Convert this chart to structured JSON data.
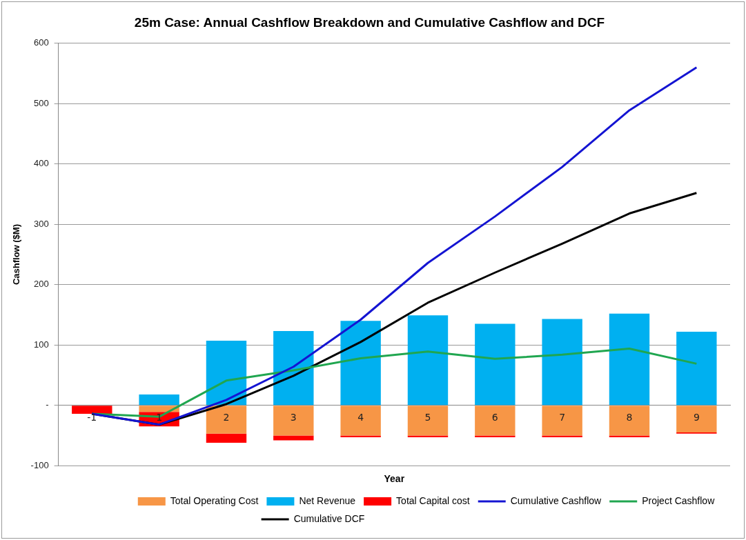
{
  "chart_data": {
    "type": "bar",
    "title": "25m Case: Annual Cashflow Breakdown and Cumulative Cashflow and DCF",
    "xlabel": "Year",
    "ylabel": "Cashflow ($M)",
    "categories": [
      "-1",
      "1",
      "2",
      "3",
      "4",
      "5",
      "6",
      "7",
      "8",
      "9"
    ],
    "stacked": true,
    "series": [
      {
        "name": "Total Operating Cost",
        "color": "#f79646",
        "values": [
          0,
          -11,
          -47,
          -50,
          -50,
          -50,
          -50,
          -50,
          -50,
          -45
        ]
      },
      {
        "name": "Net Revenue",
        "color": "#00b0f0",
        "values": [
          0,
          18,
          107,
          123,
          140,
          149,
          135,
          143,
          152,
          122
        ]
      },
      {
        "name": "Total Capital cost",
        "color": "#ff0000",
        "values": [
          -14,
          -24,
          -15,
          -8,
          -3,
          -3,
          -3,
          -3,
          -3,
          -2
        ]
      },
      {
        "name": "Cumulative Cashflow",
        "type": "line",
        "color": "#1414d2",
        "values": [
          -14,
          -32,
          9,
          64,
          142,
          236,
          313,
          395,
          489,
          560
        ]
      },
      {
        "name": "Project Cashflow",
        "type": "line",
        "color": "#20a650",
        "values": [
          -14,
          -19,
          41,
          58,
          78,
          89,
          77,
          84,
          94,
          69
        ]
      },
      {
        "name": "Cumulative DCF",
        "type": "line",
        "color": "#000000",
        "values": [
          -14,
          -32,
          2,
          49,
          105,
          170,
          220,
          268,
          318,
          352
        ]
      }
    ],
    "ylim": [
      -100,
      600
    ],
    "yticks": [
      -100,
      {
        "value": 0,
        "label": "-"
      },
      100,
      200,
      300,
      400,
      500,
      600
    ],
    "grid": "y",
    "legend": "bottom",
    "marker": "none"
  }
}
